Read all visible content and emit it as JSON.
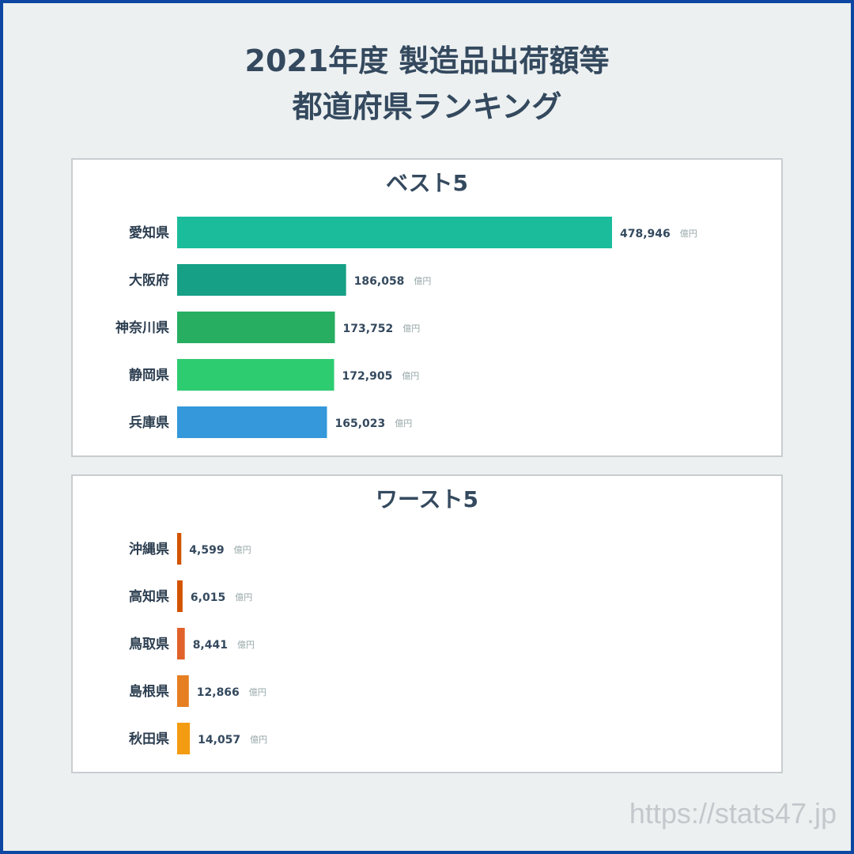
{
  "title_line1": "2021年度 製造品出荷額等",
  "title_line2": "都道府県ランキング",
  "watermark": "https://stats47.jp",
  "chart_data": [
    {
      "type": "bar",
      "orientation": "horizontal",
      "title": "ベスト5",
      "categories": [
        "愛知県",
        "大阪府",
        "神奈川県",
        "静岡県",
        "兵庫県"
      ],
      "values": [
        478946,
        186058,
        173752,
        172905,
        165023
      ],
      "value_labels": [
        "478,946",
        "186,058",
        "173,752",
        "172,905",
        "165,023"
      ],
      "unit": "億円",
      "colors": [
        "#1abc9c",
        "#16a085",
        "#27ae60",
        "#2ecc71",
        "#3498db"
      ]
    },
    {
      "type": "bar",
      "orientation": "horizontal",
      "title": "ワースト5",
      "categories": [
        "沖縄県",
        "高知県",
        "鳥取県",
        "島根県",
        "秋田県"
      ],
      "values": [
        4599,
        6015,
        8441,
        12866,
        14057
      ],
      "value_labels": [
        "4,599",
        "6,015",
        "8,441",
        "12,866",
        "14,057"
      ],
      "unit": "億円",
      "colors": [
        "#d35400",
        "#d35400",
        "#e0622a",
        "#e67e22",
        "#f39c12"
      ]
    }
  ]
}
